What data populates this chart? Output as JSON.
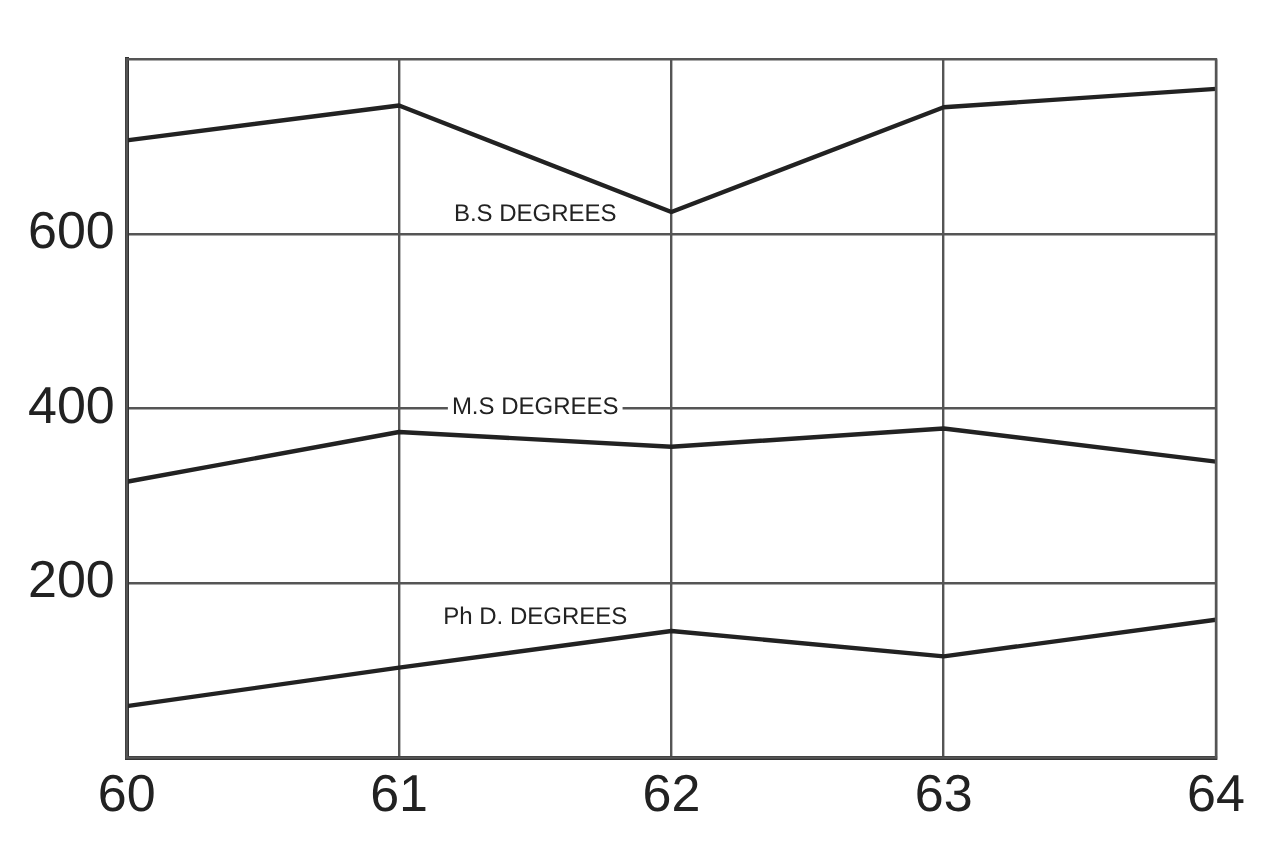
{
  "chart_data": {
    "type": "line",
    "x": [
      60,
      61,
      62,
      63,
      64
    ],
    "xlim": [
      60,
      64
    ],
    "xticks": [
      60,
      61,
      62,
      63,
      64
    ],
    "ylim": [
      0,
      800
    ],
    "yticks": [
      200,
      400,
      600
    ],
    "grid": true,
    "marker": "none",
    "line_style": "solid",
    "series": [
      {
        "name": "B.S DEGREES",
        "color": "#222222",
        "values": [
          707,
          747,
          625,
          745,
          766
        ]
      },
      {
        "name": "M.S DEGREES",
        "color": "#222222",
        "values": [
          316,
          373,
          356,
          377,
          339
        ]
      },
      {
        "name": "Ph D. DEGREES",
        "color": "#222222",
        "values": [
          59,
          103,
          145,
          116,
          158
        ]
      }
    ]
  }
}
